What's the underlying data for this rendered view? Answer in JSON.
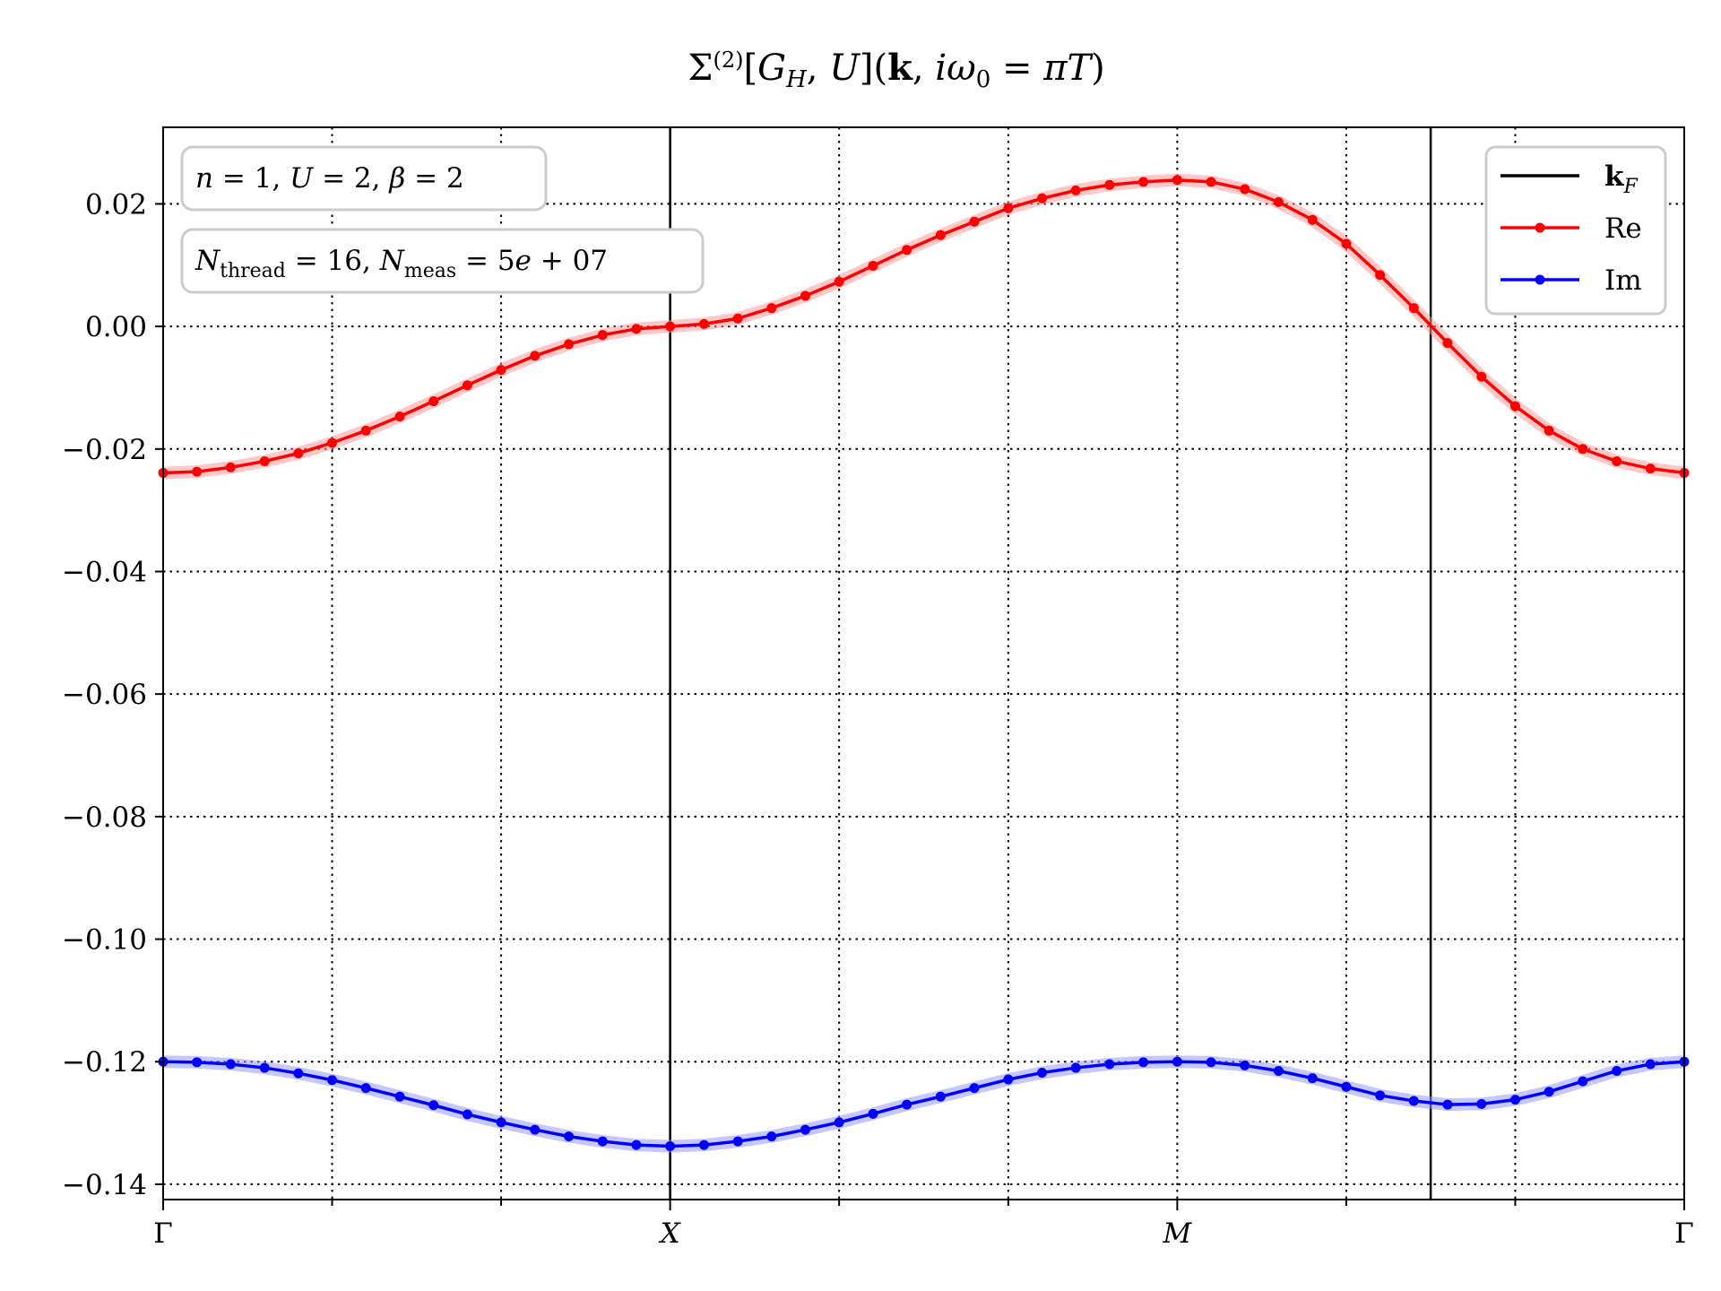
{
  "chart_data": {
    "type": "line",
    "title": "Σ⁽²⁾[G_H, U](k, iω₀ = πT)",
    "xlabel": "",
    "ylabel": "",
    "xlim": [
      0,
      1
    ],
    "ylim": [
      -0.1425,
      0.0325
    ],
    "yticks": [
      0.02,
      0.0,
      -0.02,
      -0.04,
      -0.06,
      -0.08,
      -0.1,
      -0.12,
      -0.14
    ],
    "ytick_labels": [
      "0.02",
      "0.00",
      "−0.02",
      "−0.04",
      "−0.06",
      "−0.08",
      "−0.10",
      "−0.12",
      "−0.14"
    ],
    "xticks": [
      0.0,
      0.3333,
      0.6667,
      1.0
    ],
    "xtick_labels": [
      "Γ",
      "X",
      "M",
      "Γ"
    ],
    "minor_xticks": [
      0.1111,
      0.2222,
      0.4444,
      0.5556,
      0.7778,
      0.8889
    ],
    "kF_lines": [
      0.3333,
      0.8333
    ],
    "grid": true,
    "legend_placement": "top-right",
    "legend": [
      {
        "label": "k_F",
        "color": "#000000",
        "marker": false
      },
      {
        "label": "Re",
        "color": "#ff0000",
        "marker": true
      },
      {
        "label": "Im",
        "color": "#0000ff",
        "marker": true
      }
    ],
    "info_boxes": [
      "n = 1, U = 2, β = 2",
      "N_thread = 16, N_meas = 5e + 07"
    ],
    "x": [
      0.0,
      0.0222,
      0.0444,
      0.0667,
      0.0889,
      0.1111,
      0.1333,
      0.1556,
      0.1778,
      0.2,
      0.2222,
      0.2444,
      0.2667,
      0.2889,
      0.3111,
      0.3333,
      0.3556,
      0.3778,
      0.4,
      0.4222,
      0.4444,
      0.4667,
      0.4889,
      0.5111,
      0.5333,
      0.5556,
      0.5778,
      0.6,
      0.6222,
      0.6444,
      0.6667,
      0.6889,
      0.7111,
      0.7333,
      0.7556,
      0.7778,
      0.8,
      0.8222,
      0.8444,
      0.8667,
      0.8889,
      0.9111,
      0.9333,
      0.9556,
      0.9778,
      1.0
    ],
    "series": [
      {
        "name": "Re",
        "color": "#ff0000",
        "band_color": "#ff9999",
        "values": [
          -0.0239,
          -0.0237,
          -0.023,
          -0.022,
          -0.0207,
          -0.019,
          -0.017,
          -0.0147,
          -0.0122,
          -0.0096,
          -0.0071,
          -0.0048,
          -0.0029,
          -0.0014,
          -0.0004,
          0.0,
          0.0004,
          0.0013,
          0.003,
          0.005,
          0.0073,
          0.0099,
          0.0125,
          0.0149,
          0.0171,
          0.0193,
          0.0209,
          0.0222,
          0.0231,
          0.0236,
          0.0239,
          0.0236,
          0.0224,
          0.0203,
          0.0174,
          0.0135,
          0.0084,
          0.003,
          -0.0027,
          -0.0082,
          -0.013,
          -0.017,
          -0.02,
          -0.022,
          -0.0232,
          -0.0239
        ]
      },
      {
        "name": "Im",
        "color": "#0000ff",
        "band_color": "#9999ff",
        "values": [
          -0.12,
          -0.1201,
          -0.1204,
          -0.121,
          -0.1219,
          -0.123,
          -0.1243,
          -0.1257,
          -0.1271,
          -0.1286,
          -0.1299,
          -0.1311,
          -0.1322,
          -0.133,
          -0.1336,
          -0.1338,
          -0.1336,
          -0.133,
          -0.1322,
          -0.1311,
          -0.1299,
          -0.1285,
          -0.127,
          -0.1257,
          -0.1243,
          -0.1229,
          -0.1218,
          -0.121,
          -0.1204,
          -0.1201,
          -0.12,
          -0.1201,
          -0.1206,
          -0.1215,
          -0.1227,
          -0.1241,
          -0.1255,
          -0.1264,
          -0.127,
          -0.1269,
          -0.1262,
          -0.1249,
          -0.1232,
          -0.1215,
          -0.1204,
          -0.12
        ]
      }
    ]
  }
}
